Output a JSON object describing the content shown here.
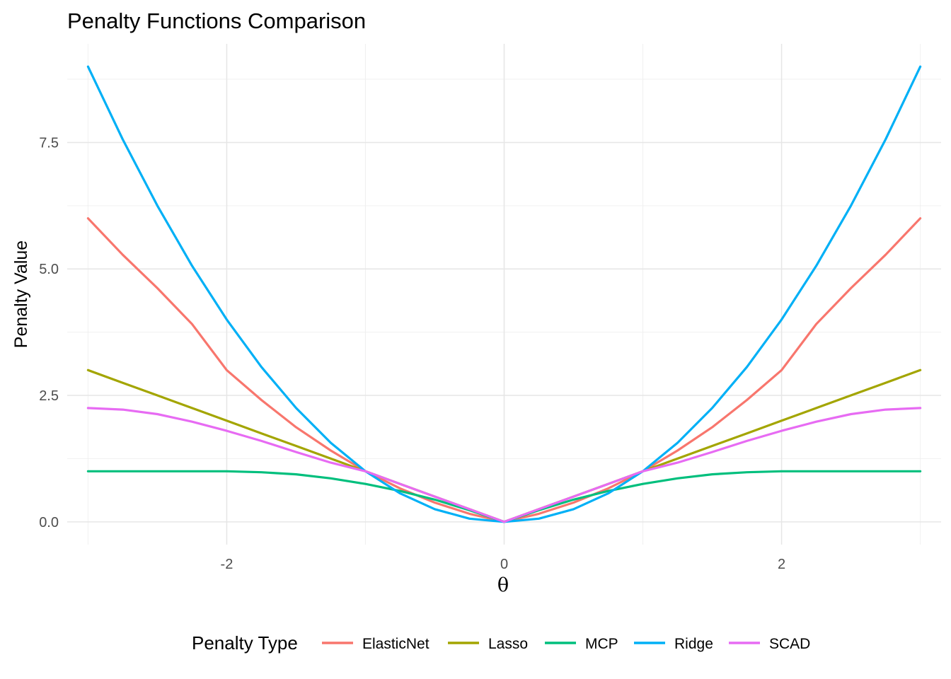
{
  "chart_data": {
    "type": "line",
    "title": "Penalty Functions Comparison",
    "xlabel": "θ",
    "ylabel": "Penalty Value",
    "xlim": [
      -3.15,
      3.15
    ],
    "ylim": [
      -0.45,
      9.45
    ],
    "x_ticks": [
      -2,
      0,
      2
    ],
    "x_tick_labels": [
      "-2",
      "0",
      "2"
    ],
    "x_minor_ticks": [
      -3,
      -1,
      1,
      3
    ],
    "y_ticks": [
      0,
      2.5,
      5,
      7.5
    ],
    "y_tick_labels": [
      "0.0",
      "2.5",
      "5.0",
      "7.5"
    ],
    "y_minor_ticks": [
      1.25,
      3.75,
      6.25,
      8.75
    ],
    "grid": true,
    "legend_title": "Penalty Type",
    "legend_position": "bottom",
    "x": [
      -3,
      -2.75,
      -2.5,
      -2.25,
      -2,
      -1.75,
      -1.5,
      -1.25,
      -1,
      -0.75,
      -0.5,
      -0.25,
      0,
      0.25,
      0.5,
      0.75,
      1,
      1.25,
      1.5,
      1.75,
      2,
      2.25,
      2.5,
      2.75,
      3
    ],
    "series": [
      {
        "name": "ElasticNet",
        "color": "#F8766D",
        "values": [
          6,
          5.28,
          4.62,
          3.91,
          3,
          2.41,
          1.87,
          1.41,
          1,
          0.66,
          0.38,
          0.16,
          0,
          0.16,
          0.38,
          0.66,
          1,
          1.41,
          1.87,
          2.41,
          3,
          3.91,
          4.62,
          5.28,
          6
        ]
      },
      {
        "name": "Lasso",
        "color": "#A3A500",
        "values": [
          3,
          2.75,
          2.5,
          2.25,
          2,
          1.75,
          1.5,
          1.25,
          1,
          0.75,
          0.5,
          0.25,
          0,
          0.25,
          0.5,
          0.75,
          1,
          1.25,
          1.5,
          1.75,
          2,
          2.25,
          2.5,
          2.75,
          3
        ]
      },
      {
        "name": "MCP",
        "color": "#00BF7D",
        "values": [
          1,
          1,
          1,
          1,
          1,
          0.98,
          0.94,
          0.86,
          0.75,
          0.61,
          0.44,
          0.23,
          0,
          0.23,
          0.44,
          0.61,
          0.75,
          0.86,
          0.94,
          0.98,
          1,
          1,
          1,
          1,
          1
        ]
      },
      {
        "name": "Ridge",
        "color": "#00B0F6",
        "values": [
          9,
          7.5625,
          6.25,
          5.0625,
          4,
          3.0625,
          2.25,
          1.5625,
          1,
          0.5625,
          0.25,
          0.0625,
          0,
          0.0625,
          0.25,
          0.5625,
          1,
          1.5625,
          2.25,
          3.0625,
          4,
          5.0625,
          6.25,
          7.5625,
          9
        ]
      },
      {
        "name": "SCAD",
        "color": "#E76BF3",
        "values": [
          2.25,
          2.22,
          2.13,
          1.98,
          1.8,
          1.6,
          1.38,
          1.17,
          1,
          0.75,
          0.5,
          0.25,
          0,
          0.25,
          0.5,
          0.75,
          1,
          1.17,
          1.38,
          1.6,
          1.8,
          1.98,
          2.13,
          2.22,
          2.25
        ]
      }
    ]
  }
}
